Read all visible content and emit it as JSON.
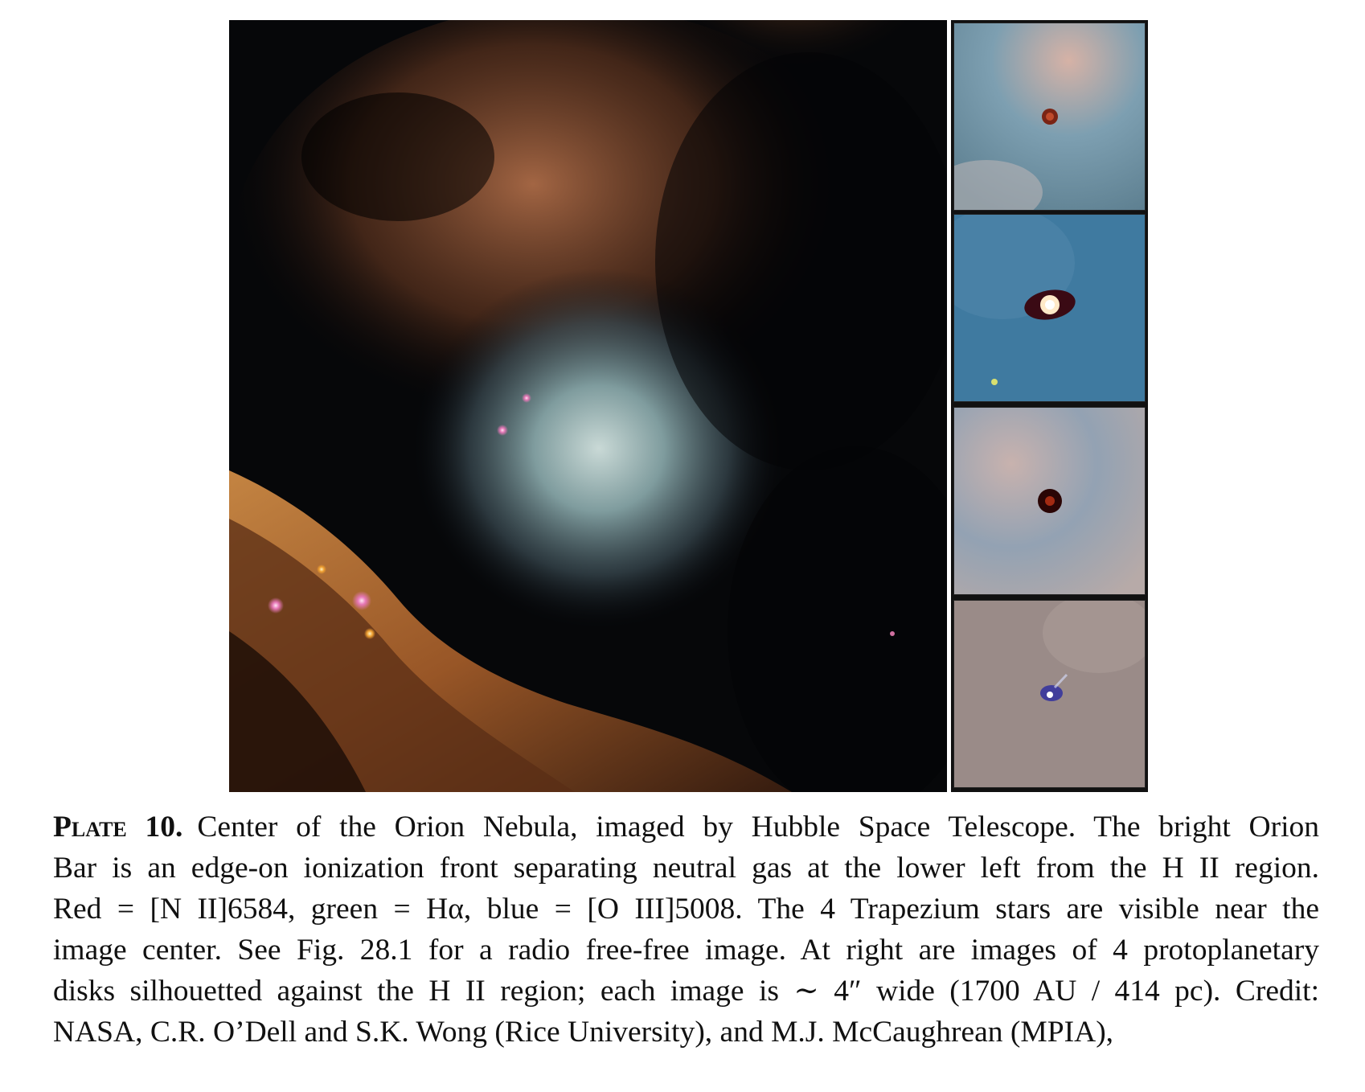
{
  "figure": {
    "plate_label": "Plate 10.",
    "main_image_description_alt": "",
    "disk_panels": [
      {
        "center_color": "#8a2a1a",
        "background": "#6b8fa6"
      },
      {
        "center_color": "#fff4e0",
        "background": "#3f7aa0"
      },
      {
        "center_color": "#3a0a06",
        "background": "#93a2b3"
      },
      {
        "center_color": "#ffffff",
        "background": "#9a8b88"
      }
    ]
  },
  "caption": {
    "lines": [
      "Center of the Orion Nebula, imaged by Hubble Space Telescope. The bright Orion",
      "Bar is an edge-on ionization front separating neutral gas at the lower left from the H II region.",
      "Red = [N II]6584, green = Hα, blue = [O III]5008.  The 4 Trapezium stars are visible near the",
      "image center. See Fig. 28.1 for a radio free-free image. At right are images of 4 protoplanetary",
      "disks silhouetted against the H II region; each image is ∼ 4″ wide (1700 AU / 414 pc). Credit:",
      "NASA, C.R. O’Dell and S.K. Wong (Rice University), and M.J. McCaughrean (MPIA),"
    ]
  }
}
